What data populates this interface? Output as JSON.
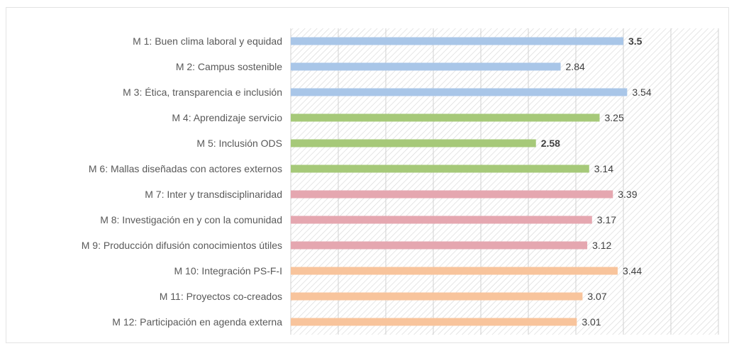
{
  "chart_data": {
    "type": "bar",
    "orientation": "horizontal",
    "categories": [
      "M 1: Buen clima laboral y equidad",
      "M 2: Campus sostenible",
      "M 3: Ética, transparencia e inclusión",
      "M 4: Aprendizaje servicio",
      "M 5: Inclusión ODS",
      "M 6: Mallas diseñadas con actores externos",
      "M 7: Inter y transdisciplinaridad",
      "M 8: Investigación en y con la comunidad",
      "M 9: Producción difusión conocimientos útiles",
      "M 10: Integración PS-F-I",
      "M 11: Proyectos co-creados",
      "M 12: Participación en agenda externa"
    ],
    "values": [
      3.5,
      2.84,
      3.54,
      3.25,
      2.58,
      3.14,
      3.39,
      3.17,
      3.12,
      3.44,
      3.07,
      3.01
    ],
    "value_labels": [
      "3.5",
      "2.84",
      "3.54",
      "3.25",
      "2.58",
      "3.14",
      "3.39",
      "3.17",
      "3.12",
      "3.44",
      "3.07",
      "3.01"
    ],
    "bold_value_labels": [
      0,
      4
    ],
    "bar_colors": [
      "#a9c6e8",
      "#a9c6e8",
      "#a9c6e8",
      "#a6c979",
      "#a6c979",
      "#a6c979",
      "#e5a7b0",
      "#e5a7b0",
      "#e5a7b0",
      "#f8c49c",
      "#f8c49c",
      "#f8c49c"
    ],
    "xlim": [
      0,
      4.5
    ],
    "title": "",
    "xlabel": "",
    "ylabel": "",
    "grid": true,
    "background": "hatched"
  }
}
